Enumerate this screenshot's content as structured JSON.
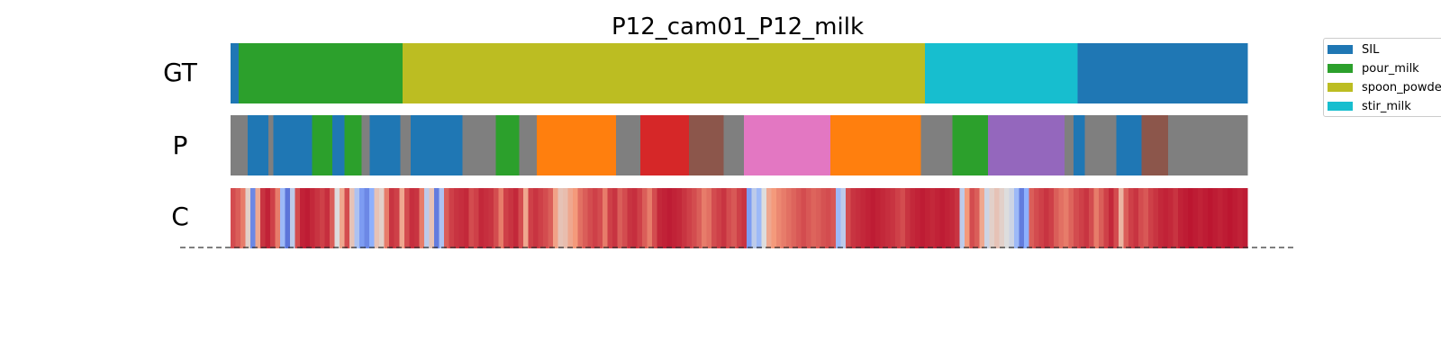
{
  "chart_data": {
    "type": "segmentation-bars",
    "title": "P12_cam01_P12_milk",
    "x_range": [
      0,
      1
    ],
    "rows": [
      {
        "label": "GT",
        "segments": [
          {
            "start": 0.0,
            "end": 0.008,
            "color": "#1f77b4"
          },
          {
            "start": 0.008,
            "end": 0.169,
            "color": "#2ca02c"
          },
          {
            "start": 0.169,
            "end": 0.683,
            "color": "#bcbd22"
          },
          {
            "start": 0.683,
            "end": 0.833,
            "color": "#17becf"
          },
          {
            "start": 0.833,
            "end": 1.0,
            "color": "#1f77b4"
          }
        ]
      },
      {
        "label": "P",
        "segments": [
          {
            "start": 0.0,
            "end": 0.017,
            "color": "#7f7f7f"
          },
          {
            "start": 0.017,
            "end": 0.037,
            "color": "#1f77b4"
          },
          {
            "start": 0.037,
            "end": 0.042,
            "color": "#7f7f7f"
          },
          {
            "start": 0.042,
            "end": 0.08,
            "color": "#1f77b4"
          },
          {
            "start": 0.08,
            "end": 0.1,
            "color": "#2ca02c"
          },
          {
            "start": 0.1,
            "end": 0.112,
            "color": "#1f77b4"
          },
          {
            "start": 0.112,
            "end": 0.129,
            "color": "#2ca02c"
          },
          {
            "start": 0.129,
            "end": 0.137,
            "color": "#7f7f7f"
          },
          {
            "start": 0.137,
            "end": 0.167,
            "color": "#1f77b4"
          },
          {
            "start": 0.167,
            "end": 0.177,
            "color": "#7f7f7f"
          },
          {
            "start": 0.177,
            "end": 0.228,
            "color": "#1f77b4"
          },
          {
            "start": 0.228,
            "end": 0.261,
            "color": "#7f7f7f"
          },
          {
            "start": 0.261,
            "end": 0.284,
            "color": "#2ca02c"
          },
          {
            "start": 0.284,
            "end": 0.301,
            "color": "#7f7f7f"
          },
          {
            "start": 0.301,
            "end": 0.379,
            "color": "#ff7f0e"
          },
          {
            "start": 0.379,
            "end": 0.403,
            "color": "#7f7f7f"
          },
          {
            "start": 0.403,
            "end": 0.451,
            "color": "#d62728"
          },
          {
            "start": 0.451,
            "end": 0.485,
            "color": "#8c564b"
          },
          {
            "start": 0.485,
            "end": 0.505,
            "color": "#7f7f7f"
          },
          {
            "start": 0.505,
            "end": 0.59,
            "color": "#e377c2"
          },
          {
            "start": 0.59,
            "end": 0.679,
            "color": "#ff7f0e"
          },
          {
            "start": 0.679,
            "end": 0.71,
            "color": "#7f7f7f"
          },
          {
            "start": 0.71,
            "end": 0.745,
            "color": "#2ca02c"
          },
          {
            "start": 0.745,
            "end": 0.82,
            "color": "#9467bd"
          },
          {
            "start": 0.82,
            "end": 0.829,
            "color": "#7f7f7f"
          },
          {
            "start": 0.829,
            "end": 0.84,
            "color": "#1f77b4"
          },
          {
            "start": 0.84,
            "end": 0.871,
            "color": "#7f7f7f"
          },
          {
            "start": 0.871,
            "end": 0.896,
            "color": "#1f77b4"
          },
          {
            "start": 0.896,
            "end": 0.922,
            "color": "#8c564b"
          },
          {
            "start": 0.922,
            "end": 1.0,
            "color": "#7f7f7f"
          }
        ]
      },
      {
        "label": "C",
        "colormap": "coolwarm",
        "values": [
          0.88,
          0.85,
          0.8,
          0.55,
          0.15,
          0.7,
          0.92,
          0.95,
          0.9,
          0.8,
          0.3,
          0.1,
          0.4,
          0.88,
          0.95,
          0.96,
          0.94,
          0.92,
          0.9,
          0.93,
          0.85,
          0.5,
          0.7,
          0.88,
          0.6,
          0.35,
          0.2,
          0.15,
          0.25,
          0.6,
          0.55,
          0.8,
          0.92,
          0.9,
          0.7,
          0.88,
          0.93,
          0.92,
          0.8,
          0.4,
          0.6,
          0.12,
          0.35,
          0.85,
          0.9,
          0.92,
          0.93,
          0.94,
          0.88,
          0.9,
          0.94,
          0.93,
          0.92,
          0.88,
          0.8,
          0.9,
          0.92,
          0.94,
          0.88,
          0.7,
          0.9,
          0.92,
          0.9,
          0.88,
          0.85,
          0.72,
          0.6,
          0.62,
          0.7,
          0.75,
          0.82,
          0.85,
          0.88,
          0.9,
          0.88,
          0.8,
          0.9,
          0.92,
          0.85,
          0.88,
          0.92,
          0.93,
          0.9,
          0.85,
          0.8,
          0.88,
          0.94,
          0.95,
          0.96,
          0.95,
          0.94,
          0.92,
          0.9,
          0.88,
          0.85,
          0.8,
          0.82,
          0.88,
          0.9,
          0.92,
          0.88,
          0.86,
          0.9,
          0.92,
          0.2,
          0.4,
          0.3,
          0.5,
          0.7,
          0.75,
          0.78,
          0.8,
          0.82,
          0.84,
          0.86,
          0.88,
          0.86,
          0.84,
          0.85,
          0.87,
          0.88,
          0.86,
          0.3,
          0.4,
          0.88,
          0.92,
          0.93,
          0.94,
          0.95,
          0.96,
          0.95,
          0.94,
          0.93,
          0.92,
          0.9,
          0.88,
          0.92,
          0.94,
          0.95,
          0.96,
          0.95,
          0.94,
          0.95,
          0.96,
          0.95,
          0.94,
          0.92,
          0.4,
          0.75,
          0.88,
          0.85,
          0.7,
          0.45,
          0.55,
          0.6,
          0.55,
          0.5,
          0.45,
          0.3,
          0.12,
          0.25,
          0.85,
          0.88,
          0.9,
          0.92,
          0.9,
          0.85,
          0.82,
          0.8,
          0.84,
          0.88,
          0.9,
          0.92,
          0.88,
          0.8,
          0.85,
          0.9,
          0.94,
          0.88,
          0.65,
          0.85,
          0.9,
          0.92,
          0.88,
          0.86,
          0.9,
          0.92,
          0.94,
          0.95,
          0.94,
          0.92,
          0.95,
          0.96,
          0.97,
          0.96,
          0.95,
          0.96,
          0.97,
          0.96,
          0.95,
          0.96,
          0.97,
          0.96,
          0.95,
          0.96
        ]
      }
    ],
    "legend": [
      {
        "label": "SIL",
        "color": "#1f77b4"
      },
      {
        "label": "pour_milk",
        "color": "#2ca02c"
      },
      {
        "label": "spoon_powder",
        "color": "#bcbd22"
      },
      {
        "label": "stir_milk",
        "color": "#17becf"
      }
    ]
  }
}
